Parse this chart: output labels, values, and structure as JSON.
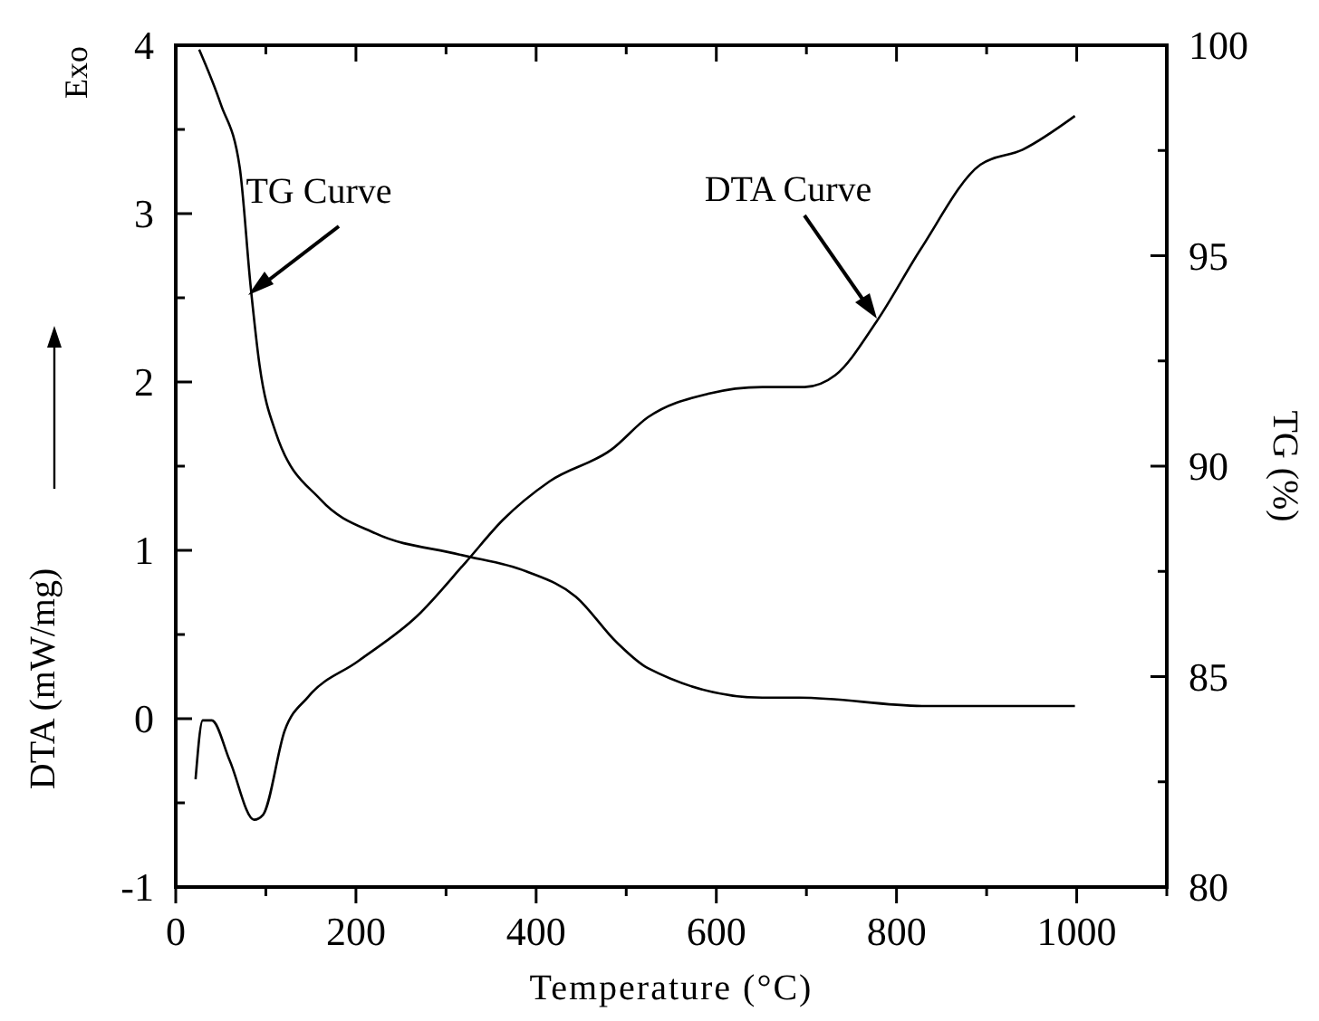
{
  "chart_data": {
    "type": "line",
    "xlabel": "Temperature (°C)",
    "ylabel": "DTA (mW/mg)",
    "y2label": "TG (%)",
    "annotations": [
      "TG Curve",
      "DTA Curve",
      "Exo"
    ],
    "xlim": [
      0,
      1100
    ],
    "xticks": [
      0,
      {
        "value": 100,
        "label": null
      },
      200,
      {
        "value": 300,
        "label": null
      },
      400,
      {
        "value": 500,
        "label": null
      },
      600,
      {
        "value": 700,
        "label": null
      },
      800,
      {
        "value": 900,
        "label": null
      },
      1000,
      {
        "value": 1100,
        "label": null
      }
    ],
    "ylim": [
      -1,
      4
    ],
    "yticks": [
      -1,
      {
        "value": -0.5,
        "label": null
      },
      0,
      {
        "value": 0.5,
        "label": null
      },
      1,
      {
        "value": 1.5,
        "label": null
      },
      2,
      {
        "value": 2.5,
        "label": null
      },
      3,
      {
        "value": 3.5,
        "label": null
      },
      4
    ],
    "y2lim": [
      80,
      100
    ],
    "y2ticks": [
      80,
      {
        "value": 82.5,
        "label": null
      },
      85,
      {
        "value": 87.5,
        "label": null
      },
      90,
      {
        "value": 92.5,
        "label": null
      },
      95,
      {
        "value": 97.5,
        "label": null
      },
      100
    ],
    "grid": false,
    "line_style": "solid",
    "series": [
      {
        "color": "#000000",
        "axis": "y",
        "x": [
          22,
          30,
          40,
          60,
          87,
          97,
          121,
          147,
          202,
          268,
          322,
          363,
          415,
          484,
          524,
          591,
          651,
          698,
          732,
          778,
          827,
          893,
          940,
          998
        ],
        "values": [
          -0.36,
          -0.01,
          -0.01,
          -0.25,
          -0.6,
          -0.57,
          -0.07,
          0.13,
          0.34,
          0.61,
          0.93,
          1.18,
          1.41,
          1.6,
          1.79,
          1.93,
          1.97,
          1.97,
          2.04,
          2.36,
          2.79,
          3.29,
          3.38,
          3.58
        ]
      },
      {
        "color": "#000000",
        "axis": "y2",
        "x": [
          26,
          50,
          71,
          83,
          93,
          111,
          161,
          222,
          315,
          389,
          444,
          490,
          524,
          651,
          692,
          833,
          998
        ],
        "values": [
          99.9,
          98.6,
          97.1,
          94.3,
          92.4,
          90.8,
          89.2,
          88.4,
          87.9,
          87.5,
          86.9,
          85.8,
          85.2,
          84.5,
          84.5,
          84.3,
          84.3
        ]
      }
    ]
  }
}
